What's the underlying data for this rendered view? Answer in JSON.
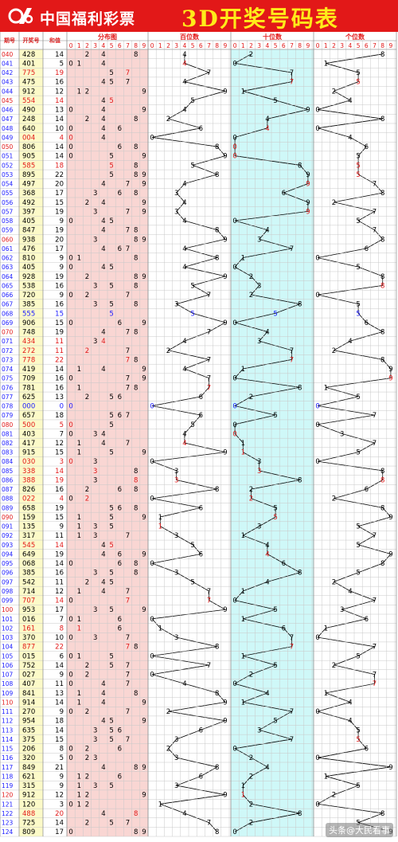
{
  "header": {
    "logo_text": "中国福利彩票",
    "title": "3D开奖号码表"
  },
  "columns": {
    "issue": "期号",
    "number": "开奖号",
    "sum": "和值",
    "distribution": "分布图",
    "hundreds": "百位数",
    "tens": "十位数",
    "units": "个位数",
    "digits": [
      "0",
      "1",
      "2",
      "3",
      "4",
      "5",
      "6",
      "7",
      "8",
      "9"
    ]
  },
  "colors": {
    "red": "#e21818",
    "blue": "#1a1aff",
    "pink": "#f9d6d3",
    "cyan": "#cff8f8",
    "yellow": "#fcfac8",
    "grid": "#c8c8c8"
  },
  "rows": [
    {
      "issue": "040",
      "num": "428",
      "sum": "14"
    },
    {
      "issue": "041",
      "num": "401",
      "sum": "5"
    },
    {
      "issue": "042",
      "num": "775",
      "sum": "19"
    },
    {
      "issue": "043",
      "num": "475",
      "sum": "16"
    },
    {
      "issue": "044",
      "num": "912",
      "sum": "12"
    },
    {
      "issue": "045",
      "num": "554",
      "sum": "14"
    },
    {
      "issue": "046",
      "num": "490",
      "sum": "13"
    },
    {
      "issue": "047",
      "num": "248",
      "sum": "14"
    },
    {
      "issue": "048",
      "num": "640",
      "sum": "10"
    },
    {
      "issue": "049",
      "num": "004",
      "sum": "4"
    },
    {
      "issue": "050",
      "num": "806",
      "sum": "14"
    },
    {
      "issue": "051",
      "num": "905",
      "sum": "14"
    },
    {
      "issue": "052",
      "num": "585",
      "sum": "18"
    },
    {
      "issue": "053",
      "num": "895",
      "sum": "22"
    },
    {
      "issue": "054",
      "num": "497",
      "sum": "20"
    },
    {
      "issue": "055",
      "num": "368",
      "sum": "17"
    },
    {
      "issue": "056",
      "num": "492",
      "sum": "15"
    },
    {
      "issue": "057",
      "num": "397",
      "sum": "19"
    },
    {
      "issue": "058",
      "num": "405",
      "sum": "9"
    },
    {
      "issue": "059",
      "num": "847",
      "sum": "19"
    },
    {
      "issue": "060",
      "num": "938",
      "sum": "20"
    },
    {
      "issue": "061",
      "num": "476",
      "sum": "17"
    },
    {
      "issue": "062",
      "num": "810",
      "sum": "9"
    },
    {
      "issue": "063",
      "num": "405",
      "sum": "9"
    },
    {
      "issue": "064",
      "num": "928",
      "sum": "19"
    },
    {
      "issue": "065",
      "num": "538",
      "sum": "16"
    },
    {
      "issue": "066",
      "num": "720",
      "sum": "9"
    },
    {
      "issue": "067",
      "num": "385",
      "sum": "16"
    },
    {
      "issue": "068",
      "num": "555",
      "sum": "15"
    },
    {
      "issue": "069",
      "num": "906",
      "sum": "15"
    },
    {
      "issue": "070",
      "num": "748",
      "sum": "19"
    },
    {
      "issue": "071",
      "num": "434",
      "sum": "11"
    },
    {
      "issue": "072",
      "num": "272",
      "sum": "11"
    },
    {
      "issue": "073",
      "num": "778",
      "sum": "22"
    },
    {
      "issue": "074",
      "num": "419",
      "sum": "14"
    },
    {
      "issue": "075",
      "num": "709",
      "sum": "16"
    },
    {
      "issue": "076",
      "num": "781",
      "sum": "16"
    },
    {
      "issue": "077",
      "num": "625",
      "sum": "13"
    },
    {
      "issue": "078",
      "num": "000",
      "sum": "0"
    },
    {
      "issue": "079",
      "num": "657",
      "sum": "18"
    },
    {
      "issue": "080",
      "num": "500",
      "sum": "5"
    },
    {
      "issue": "081",
      "num": "403",
      "sum": "7"
    },
    {
      "issue": "082",
      "num": "417",
      "sum": "12"
    },
    {
      "issue": "083",
      "num": "915",
      "sum": "15"
    },
    {
      "issue": "084",
      "num": "030",
      "sum": "3"
    },
    {
      "issue": "085",
      "num": "338",
      "sum": "14"
    },
    {
      "issue": "086",
      "num": "388",
      "sum": "19"
    },
    {
      "issue": "087",
      "num": "826",
      "sum": "16"
    },
    {
      "issue": "088",
      "num": "022",
      "sum": "4"
    },
    {
      "issue": "089",
      "num": "658",
      "sum": "19"
    },
    {
      "issue": "090",
      "num": "159",
      "sum": "15"
    },
    {
      "issue": "091",
      "num": "135",
      "sum": "9"
    },
    {
      "issue": "092",
      "num": "317",
      "sum": "11"
    },
    {
      "issue": "093",
      "num": "545",
      "sum": "14"
    },
    {
      "issue": "094",
      "num": "649",
      "sum": "19"
    },
    {
      "issue": "095",
      "num": "068",
      "sum": "14"
    },
    {
      "issue": "096",
      "num": "385",
      "sum": "16"
    },
    {
      "issue": "097",
      "num": "542",
      "sum": "11"
    },
    {
      "issue": "098",
      "num": "714",
      "sum": "12"
    },
    {
      "issue": "099",
      "num": "707",
      "sum": "14"
    },
    {
      "issue": "100",
      "num": "953",
      "sum": "17"
    },
    {
      "issue": "101",
      "num": "016",
      "sum": "7"
    },
    {
      "issue": "102",
      "num": "161",
      "sum": "8"
    },
    {
      "issue": "103",
      "num": "370",
      "sum": "10"
    },
    {
      "issue": "104",
      "num": "877",
      "sum": "22"
    },
    {
      "issue": "105",
      "num": "015",
      "sum": "6"
    },
    {
      "issue": "106",
      "num": "752",
      "sum": "14"
    },
    {
      "issue": "107",
      "num": "027",
      "sum": "9"
    },
    {
      "issue": "108",
      "num": "407",
      "sum": "11"
    },
    {
      "issue": "109",
      "num": "841",
      "sum": "13"
    },
    {
      "issue": "110",
      "num": "914",
      "sum": "14"
    },
    {
      "issue": "111",
      "num": "270",
      "sum": "9"
    },
    {
      "issue": "112",
      "num": "954",
      "sum": "18"
    },
    {
      "issue": "113",
      "num": "635",
      "sum": "14"
    },
    {
      "issue": "114",
      "num": "375",
      "sum": "15"
    },
    {
      "issue": "115",
      "num": "206",
      "sum": "8"
    },
    {
      "issue": "116",
      "num": "320",
      "sum": "5"
    },
    {
      "issue": "117",
      "num": "849",
      "sum": "21"
    },
    {
      "issue": "118",
      "num": "621",
      "sum": "9"
    },
    {
      "issue": "119",
      "num": "315",
      "sum": "9"
    },
    {
      "issue": "120",
      "num": "912",
      "sum": "12"
    },
    {
      "issue": "121",
      "num": "120",
      "sum": "3"
    },
    {
      "issue": "122",
      "num": "488",
      "sum": "20"
    },
    {
      "issue": "123",
      "num": "725",
      "sum": "14"
    },
    {
      "issue": "124",
      "num": "809",
      "sum": "17"
    }
  ],
  "watermark": "头条@大民看事"
}
